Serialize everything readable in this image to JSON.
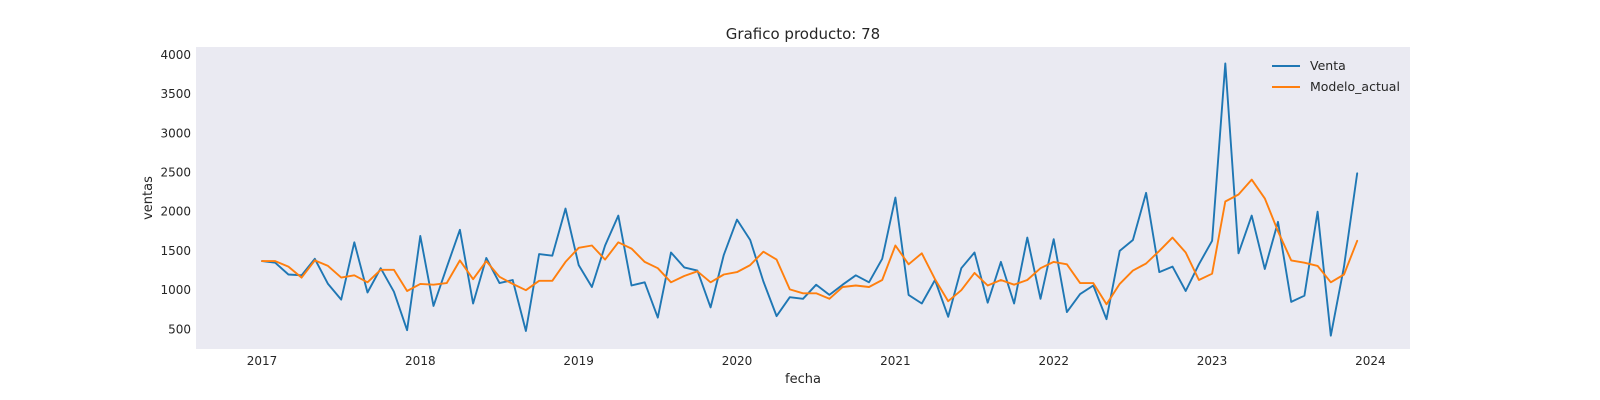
{
  "chart_data": {
    "type": "line",
    "title": "Grafico producto: 78",
    "xlabel": "fecha",
    "ylabel": "ventas",
    "x_start": "2017-01",
    "x_step": "month",
    "xlim": [
      "2016-08",
      "2024-04"
    ],
    "ylim": [
      250,
      4100
    ],
    "x_ticks": [
      "2017",
      "2018",
      "2019",
      "2020",
      "2021",
      "2022",
      "2023",
      "2024"
    ],
    "y_ticks": [
      "500",
      "1000",
      "1500",
      "2000",
      "2500",
      "3000",
      "3500",
      "4000"
    ],
    "grid": false,
    "legend_position": "top-right",
    "series": [
      {
        "name": "Venta",
        "color": "#1f77b4",
        "values": [
          1370,
          1350,
          1200,
          1190,
          1400,
          1080,
          880,
          1610,
          970,
          1280,
          980,
          490,
          1690,
          800,
          1290,
          1770,
          830,
          1410,
          1090,
          1130,
          480,
          1460,
          1440,
          2040,
          1320,
          1040,
          1570,
          1950,
          1060,
          1100,
          650,
          1480,
          1290,
          1250,
          780,
          1450,
          1900,
          1640,
          1110,
          670,
          910,
          890,
          1070,
          940,
          1070,
          1190,
          1100,
          1400,
          2180,
          940,
          830,
          1130,
          660,
          1280,
          1480,
          840,
          1360,
          830,
          1670,
          890,
          1650,
          720,
          950,
          1060,
          630,
          1500,
          1640,
          2240,
          1230,
          1300,
          990,
          1330,
          1630,
          3890,
          1470,
          1950,
          1270,
          1870,
          850,
          930,
          2000,
          420,
          1300,
          2490
        ]
      },
      {
        "name": "Modelo_actual",
        "color": "#ff7f0e",
        "values": [
          1370,
          1370,
          1300,
          1160,
          1380,
          1310,
          1160,
          1190,
          1100,
          1260,
          1260,
          990,
          1080,
          1070,
          1090,
          1380,
          1140,
          1370,
          1170,
          1080,
          1000,
          1120,
          1120,
          1360,
          1540,
          1570,
          1390,
          1610,
          1530,
          1360,
          1280,
          1100,
          1180,
          1240,
          1100,
          1200,
          1230,
          1320,
          1490,
          1390,
          1010,
          960,
          960,
          890,
          1040,
          1060,
          1040,
          1130,
          1570,
          1330,
          1470,
          1140,
          860,
          1000,
          1220,
          1060,
          1130,
          1070,
          1130,
          1280,
          1360,
          1330,
          1090,
          1090,
          820,
          1080,
          1250,
          1340,
          1500,
          1670,
          1480,
          1130,
          1210,
          2130,
          2220,
          2410,
          2170,
          1750,
          1380,
          1350,
          1310,
          1100,
          1200,
          1630
        ]
      }
    ]
  }
}
